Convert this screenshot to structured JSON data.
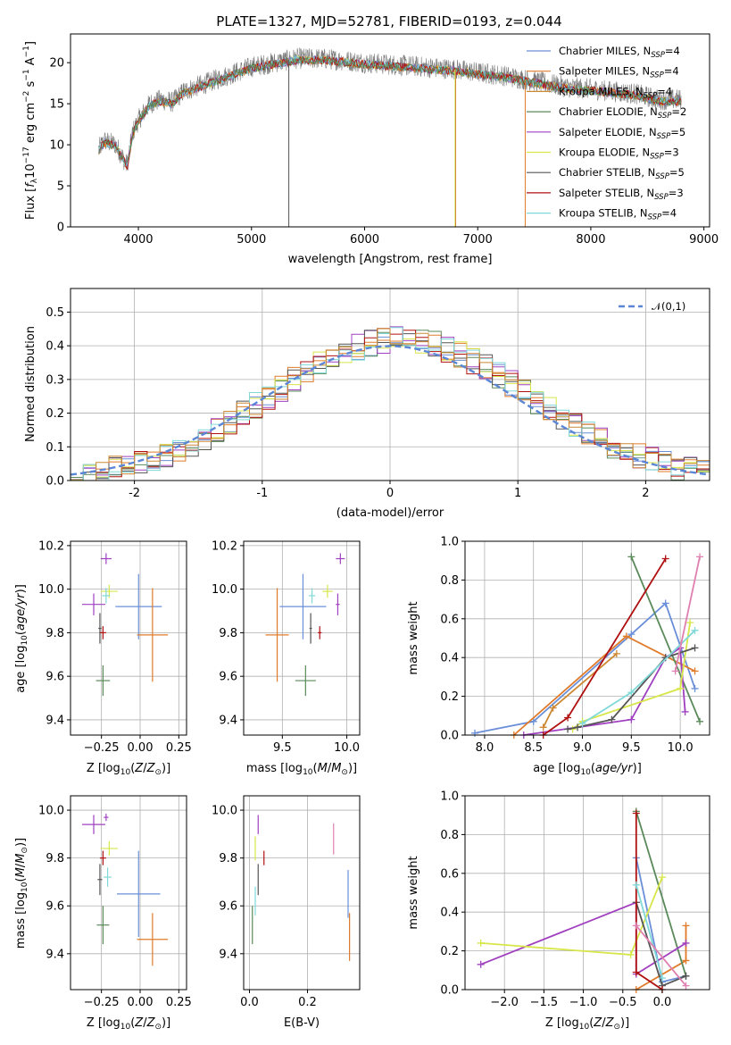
{
  "title": "PLATE=1327, MJD=52781, FIBERID=0193, z=0.044",
  "colors": [
    "#6a8fd8",
    "#e07b2a",
    "#cc8833",
    "#5a8a5a",
    "#a040c0",
    "#d7e64a",
    "#555555",
    "#b01010",
    "#80d8d8"
  ],
  "models": [
    {
      "name": "Chabrier MILES, N",
      "sub": "SSP",
      "eq": "=4",
      "color": "#6a8fd8"
    },
    {
      "name": "Salpeter MILES, N",
      "sub": "SSP",
      "eq": "=4",
      "color": "#e07b2a"
    },
    {
      "name": "Kroupa MILES, N",
      "sub": "SSP",
      "eq": "=4",
      "color": "#cc8833"
    },
    {
      "name": "Chabrier ELODIE, N",
      "sub": "SSP",
      "eq": "=2",
      "color": "#5a8a5a"
    },
    {
      "name": "Salpeter ELODIE, N",
      "sub": "SSP",
      "eq": "=5",
      "color": "#a040c0"
    },
    {
      "name": "Kroupa ELODIE, N",
      "sub": "SSP",
      "eq": "=3",
      "color": "#d7e64a"
    },
    {
      "name": "Chabrier STELIB, N",
      "sub": "SSP",
      "eq": "=5",
      "color": "#555555"
    },
    {
      "name": "Salpeter STELIB, N",
      "sub": "SSP",
      "eq": "=3",
      "color": "#b01010"
    },
    {
      "name": "Kroupa STELIB, N",
      "sub": "SSP",
      "eq": "=4",
      "color": "#80d8d8"
    }
  ],
  "chart_data": [
    {
      "id": "spectrum",
      "type": "line",
      "title": "PLATE=1327, MJD=52781, FIBERID=0193, z=0.044",
      "xlabel": "wavelength [Angstrom, rest frame]",
      "ylabel": "Flux [f_λ10^-17 erg cm^-2 s^-1 A^-1]",
      "xlim": [
        3400,
        9050
      ],
      "ylim": [
        0,
        23.5
      ],
      "xticks": [
        4000,
        5000,
        6000,
        7000,
        8000,
        9000
      ],
      "yticks": [
        0,
        5,
        10,
        15,
        20
      ],
      "continuum_x": [
        3650,
        3700,
        3800,
        3900,
        3950,
        4000,
        4100,
        4200,
        4300,
        4400,
        4600,
        4800,
        5000,
        5200,
        5400,
        5600,
        5800,
        6000,
        6200,
        6400,
        6600,
        6800,
        7000,
        7200,
        7400,
        7600,
        7800,
        8000,
        8200,
        8400,
        8600,
        8800
      ],
      "continuum_y": [
        9.5,
        10.5,
        10.0,
        7.5,
        11.5,
        13.0,
        15.0,
        15.5,
        15.2,
        16.5,
        17.5,
        18.5,
        19.5,
        20.0,
        20.5,
        20.5,
        20.3,
        20.0,
        19.8,
        19.6,
        19.4,
        19.2,
        18.8,
        18.5,
        18.0,
        17.5,
        17.0,
        16.8,
        16.5,
        16.2,
        15.5,
        15.5
      ]
    },
    {
      "id": "residuals",
      "type": "area",
      "xlabel": "(data-model)/error",
      "ylabel": "Normed distribution",
      "xlim": [
        -2.5,
        2.5
      ],
      "ylim": [
        0,
        0.57
      ],
      "xticks": [
        -2,
        -1,
        0,
        1,
        2
      ],
      "yticks": [
        0.0,
        0.1,
        0.2,
        0.3,
        0.4,
        0.5
      ],
      "reference": {
        "name": "N(0,1)",
        "label": "𝒩(0,1)"
      }
    },
    {
      "id": "z_age",
      "type": "scatter",
      "xlabel": "Z [log10(Z/Z⊙)]",
      "ylabel": "age  [log10(age/yr)]",
      "xlim": [
        -0.45,
        0.3
      ],
      "ylim": [
        9.33,
        10.22
      ],
      "xticks": [
        -0.25,
        0.0,
        0.25
      ],
      "xticklabels": [
        "−0.25",
        "0.00",
        "0.25"
      ],
      "yticks": [
        9.4,
        9.6,
        9.8,
        10.0,
        10.2
      ],
      "points": [
        {
          "x": -0.01,
          "y": 9.92,
          "xe": 0.3,
          "ye": 0.3,
          "c": 0
        },
        {
          "x": 0.08,
          "y": 9.79,
          "xe": 0.2,
          "ye": 0.43,
          "c": 1
        },
        {
          "x": -0.24,
          "y": 9.58,
          "xe": 0.09,
          "ye": 0.14,
          "c": 3
        },
        {
          "x": -0.3,
          "y": 9.93,
          "xe": 0.15,
          "ye": 0.1,
          "c": 4
        },
        {
          "x": -0.2,
          "y": 9.99,
          "xe": 0.11,
          "ye": 0.06,
          "c": 5
        },
        {
          "x": -0.26,
          "y": 9.82,
          "xe": 0.02,
          "ye": 0.14,
          "c": 6
        },
        {
          "x": -0.24,
          "y": 9.8,
          "xe": 0.04,
          "ye": 0.06,
          "c": 7
        },
        {
          "x": -0.22,
          "y": 9.97,
          "xe": 0.05,
          "ye": 0.07,
          "c": 8
        },
        {
          "x": -0.22,
          "y": 10.14,
          "xe": 0.07,
          "ye": 0.05,
          "c": 4
        }
      ]
    },
    {
      "id": "mass_age",
      "type": "scatter",
      "xlabel": "mass [log10(M/M⊙)]",
      "ylabel": "",
      "xlim": [
        9.2,
        10.1
      ],
      "ylim": [
        9.33,
        10.22
      ],
      "xticks": [
        9.5,
        10.0
      ],
      "yticks": [
        9.4,
        9.6,
        9.8,
        10.0,
        10.2
      ],
      "points": [
        {
          "x": 9.66,
          "y": 9.92,
          "xe": 0.36,
          "ye": 0.3,
          "c": 0
        },
        {
          "x": 9.46,
          "y": 9.79,
          "xe": 0.18,
          "ye": 0.43,
          "c": 1
        },
        {
          "x": 9.68,
          "y": 9.58,
          "xe": 0.16,
          "ye": 0.14,
          "c": 3
        },
        {
          "x": 9.93,
          "y": 9.93,
          "xe": 0.03,
          "ye": 0.1,
          "c": 4
        },
        {
          "x": 9.85,
          "y": 9.99,
          "xe": 0.08,
          "ye": 0.06,
          "c": 5
        },
        {
          "x": 9.72,
          "y": 9.82,
          "xe": 0.02,
          "ye": 0.14,
          "c": 6
        },
        {
          "x": 9.79,
          "y": 9.8,
          "xe": 0.03,
          "ye": 0.06,
          "c": 7
        },
        {
          "x": 9.73,
          "y": 9.97,
          "xe": 0.05,
          "ye": 0.07,
          "c": 8
        },
        {
          "x": 9.95,
          "y": 10.14,
          "xe": 0.07,
          "ye": 0.05,
          "c": 4
        }
      ]
    },
    {
      "id": "age_weight",
      "type": "line",
      "xlabel": "age  [log10(age/yr)]",
      "ylabel": "mass weight",
      "xlim": [
        7.8,
        10.3
      ],
      "ylim": [
        0,
        1.0
      ],
      "xticks": [
        8.0,
        8.5,
        9.0,
        9.5,
        10.0
      ],
      "yticks": [
        0.0,
        0.2,
        0.4,
        0.6,
        0.8,
        1.0
      ],
      "series": [
        {
          "c": 0,
          "x": [
            7.9,
            8.5,
            9.5,
            9.85,
            10.15
          ],
          "y": [
            0.01,
            0.07,
            0.52,
            0.68,
            0.24
          ]
        },
        {
          "c": 1,
          "x": [
            8.3,
            9.45,
            10.15
          ],
          "y": [
            0.0,
            0.51,
            0.33
          ]
        },
        {
          "c": 2,
          "x": [
            8.6,
            8.7,
            9.35
          ],
          "y": [
            0.04,
            0.14,
            0.42
          ]
        },
        {
          "c": 3,
          "x": [
            9.5,
            10.2
          ],
          "y": [
            0.92,
            0.07
          ]
        },
        {
          "c": 4,
          "x": [
            8.4,
            9.5,
            9.85,
            10.0,
            10.05
          ],
          "y": [
            0.0,
            0.08,
            0.4,
            0.45,
            0.12
          ]
        },
        {
          "c": 5,
          "x": [
            8.9,
            9.0,
            10.0,
            10.1
          ],
          "y": [
            0.03,
            0.07,
            0.24,
            0.58
          ]
        },
        {
          "c": 6,
          "x": [
            8.85,
            8.95,
            9.3,
            9.85,
            10.15
          ],
          "y": [
            0.03,
            0.04,
            0.08,
            0.4,
            0.45
          ]
        },
        {
          "c": 7,
          "x": [
            8.6,
            8.85,
            9.85
          ],
          "y": [
            0.0,
            0.09,
            0.91
          ]
        },
        {
          "c": 8,
          "x": [
            9.0,
            9.5,
            10.15
          ],
          "y": [
            0.06,
            0.22,
            0.54
          ]
        },
        {
          "c": 9,
          "x": [
            9.95,
            10.2
          ],
          "y": [
            0.33,
            0.92
          ]
        }
      ]
    },
    {
      "id": "z_mass",
      "type": "scatter",
      "xlabel": "Z [log10(Z/Z⊙)]",
      "ylabel": "mass [log10(M/M⊙)]",
      "xlim": [
        -0.45,
        0.3
      ],
      "ylim": [
        9.25,
        10.06
      ],
      "xticks": [
        -0.25,
        0.0,
        0.25
      ],
      "xticklabels": [
        "−0.25",
        "0.00",
        "0.25"
      ],
      "yticks": [
        9.4,
        9.6,
        9.8,
        10.0
      ],
      "points": [
        {
          "x": -0.01,
          "y": 9.65,
          "xe": 0.28,
          "ye": 0.36,
          "c": 0
        },
        {
          "x": 0.08,
          "y": 9.46,
          "xe": 0.2,
          "ye": 0.22,
          "c": 1
        },
        {
          "x": -0.24,
          "y": 9.52,
          "xe": 0.08,
          "ye": 0.16,
          "c": 3
        },
        {
          "x": -0.3,
          "y": 9.94,
          "xe": 0.15,
          "ye": 0.08,
          "c": 4
        },
        {
          "x": -0.2,
          "y": 9.84,
          "xe": 0.11,
          "ye": 0.06,
          "c": 5
        },
        {
          "x": -0.26,
          "y": 9.71,
          "xe": 0.03,
          "ye": 0.13,
          "c": 6
        },
        {
          "x": -0.24,
          "y": 9.8,
          "xe": 0.04,
          "ye": 0.06,
          "c": 7
        },
        {
          "x": -0.21,
          "y": 9.72,
          "xe": 0.05,
          "ye": 0.08,
          "c": 8
        },
        {
          "x": -0.22,
          "y": 9.97,
          "xe": 0.03,
          "ye": 0.03,
          "c": 4
        }
      ]
    },
    {
      "id": "ebv_mass",
      "type": "scatter",
      "xlabel": "E(B-V)",
      "ylabel": "",
      "xlim": [
        -0.02,
        0.38
      ],
      "ylim": [
        9.25,
        10.06
      ],
      "xticks": [
        0.0,
        0.2
      ],
      "yticks": [
        9.4,
        9.6,
        9.8,
        10.0
      ],
      "points": [
        {
          "x": 0.01,
          "y": 9.52,
          "xe": 0,
          "ye": 0.16,
          "c": 3
        },
        {
          "x": 0.02,
          "y": 9.62,
          "xe": 0,
          "ye": 0.12,
          "c": 8
        },
        {
          "x": 0.02,
          "y": 9.84,
          "xe": 0,
          "ye": 0.1,
          "c": 5
        },
        {
          "x": 0.03,
          "y": 9.71,
          "xe": 0,
          "ye": 0.13,
          "c": 6
        },
        {
          "x": 0.03,
          "y": 9.94,
          "xe": 0,
          "ye": 0.08,
          "c": 4
        },
        {
          "x": 0.05,
          "y": 9.8,
          "xe": 0,
          "ye": 0.06,
          "c": 7
        },
        {
          "x": 0.29,
          "y": 9.88,
          "xe": 0,
          "ye": 0.13,
          "c": 9
        },
        {
          "x": 0.34,
          "y": 9.65,
          "xe": 0,
          "ye": 0.2,
          "c": 0
        },
        {
          "x": 0.345,
          "y": 9.47,
          "xe": 0,
          "ye": 0.2,
          "c": 1
        }
      ]
    },
    {
      "id": "z_weight",
      "type": "line",
      "xlabel": "Z [log10(Z/Z⊙)]",
      "ylabel": "mass weight",
      "xlim": [
        -2.5,
        0.6
      ],
      "ylim": [
        0,
        1.0
      ],
      "xticks": [
        -2.0,
        -1.5,
        -1.0,
        -0.5,
        0.0
      ],
      "xticklabels": [
        "−2.0",
        "−1.5",
        "−1.0",
        "−0.5",
        "0.0"
      ],
      "yticks": [
        0.0,
        0.2,
        0.4,
        0.6,
        0.8,
        1.0
      ],
      "series": [
        {
          "c": 0,
          "x": [
            -0.33,
            0.0,
            0.3
          ],
          "y": [
            0.68,
            0.04,
            0.07
          ]
        },
        {
          "c": 1,
          "x": [
            -0.33,
            0.3,
            0.3
          ],
          "y": [
            0.0,
            0.15,
            0.33
          ]
        },
        {
          "c": 3,
          "x": [
            -0.33,
            0.3
          ],
          "y": [
            0.92,
            0.07
          ]
        },
        {
          "c": 4,
          "x": [
            -2.3,
            -0.33,
            -0.33,
            0.3
          ],
          "y": [
            0.13,
            0.45,
            0.08,
            0.24
          ]
        },
        {
          "c": 5,
          "x": [
            -2.3,
            -0.4,
            0.0
          ],
          "y": [
            0.24,
            0.18,
            0.58
          ]
        },
        {
          "c": 6,
          "x": [
            -0.33,
            0.0,
            0.3
          ],
          "y": [
            0.45,
            0.02,
            0.07
          ]
        },
        {
          "c": 7,
          "x": [
            -0.33,
            -0.33,
            0.0
          ],
          "y": [
            0.91,
            0.09,
            0.0
          ]
        },
        {
          "c": 8,
          "x": [
            -0.33,
            0.0
          ],
          "y": [
            0.54,
            0.06
          ]
        },
        {
          "c": 9,
          "x": [
            -0.33,
            0.3
          ],
          "y": [
            0.33,
            0.02
          ]
        }
      ]
    }
  ]
}
